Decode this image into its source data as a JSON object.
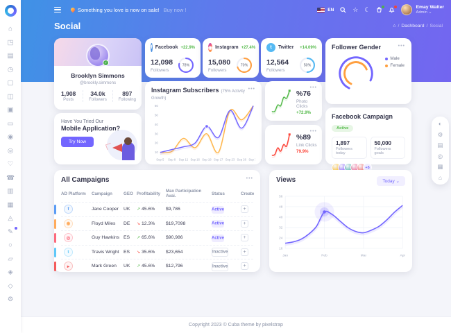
{
  "header": {
    "announcement": "Something you love is now on sale!",
    "announcement_link": "Buy now !",
    "lang": "EN",
    "user_name": "Emay Walter",
    "user_role": "Admin"
  },
  "page": {
    "title": "Social",
    "breadcrumb_home": "⌂",
    "breadcrumb": [
      "Dashboard",
      "Social"
    ]
  },
  "sidebar": {
    "items": [
      {
        "id": "dashboard",
        "glyph": "⌂"
      },
      {
        "id": "widgets",
        "glyph": "◳"
      },
      {
        "id": "page-layout",
        "glyph": "▤"
      },
      {
        "id": "project",
        "glyph": "◷"
      },
      {
        "id": "file-manager",
        "glyph": "▢"
      },
      {
        "id": "kanban",
        "glyph": "◫"
      },
      {
        "id": "ecommerce",
        "glyph": "▣"
      },
      {
        "id": "letter-box",
        "glyph": "▭"
      },
      {
        "id": "chat",
        "glyph": "◉"
      },
      {
        "id": "users",
        "glyph": "◎"
      },
      {
        "id": "bookmarks",
        "glyph": "♡"
      },
      {
        "id": "contacts",
        "glyph": "☎"
      },
      {
        "id": "tasks",
        "glyph": "▥"
      },
      {
        "id": "calendar",
        "glyph": "▦"
      },
      {
        "id": "social-app",
        "glyph": "◬"
      },
      {
        "id": "to-do",
        "glyph": "✎",
        "badge": true
      },
      {
        "id": "search",
        "glyph": "○"
      },
      {
        "id": "blog",
        "glyph": "▱"
      },
      {
        "id": "faq",
        "glyph": "◈"
      },
      {
        "id": "knowledgebase",
        "glyph": "◇"
      },
      {
        "id": "settings",
        "glyph": "⚙"
      }
    ]
  },
  "profile": {
    "name": "Brooklyn Simmons",
    "handle": "@brookly.simmons",
    "stats": [
      {
        "value": "1,908",
        "label": "Posts"
      },
      {
        "value": "34.0k",
        "label": "Followers"
      },
      {
        "value": "897",
        "label": "Following"
      }
    ]
  },
  "mobile_app": {
    "line1": "Have You Tried Our",
    "line2": "Mobile Application?",
    "button": "Try Now"
  },
  "social_cards": [
    {
      "name": "Facebook",
      "change": "+22.9%",
      "value": "12,098",
      "label": "Followers",
      "percent": 78,
      "ring_label": "78%",
      "color": "#7366ff",
      "icon_bg": "#4a90e2",
      "glyph": "f"
    },
    {
      "name": "Instagram",
      "change": "+27.4%",
      "value": "15,080",
      "label": "Followers",
      "percent": 70,
      "ring_label": "70%",
      "color": "#ff9f40",
      "icon_bg": "linear-gradient(135deg,#b83bd8,#ff6a5c,#ffb74d)",
      "glyph": "◉"
    },
    {
      "name": "Twitter",
      "change": "+14.09%",
      "value": "12,564",
      "label": "Followers",
      "percent": 50,
      "ring_label": "50%",
      "color": "#55b9f3",
      "icon_bg": "#55b9f3",
      "glyph": "t"
    }
  ],
  "instagram_card": {
    "title": "Instagram Subscribers",
    "subtitle": "(75% Activity Growth)"
  },
  "photo_clicks": {
    "value": "%76",
    "label": "Photo Clicks",
    "change": "+72.9%",
    "color": "#54ba4a"
  },
  "link_clicks": {
    "value": "%89",
    "label": "Link Clicks",
    "change": "79.9%",
    "color": "#fc4438"
  },
  "follower_gender": {
    "title": "Follower Gender",
    "legend": [
      {
        "label": "Male",
        "color": "#7366ff"
      },
      {
        "label": "Female",
        "color": "#ff9f40"
      }
    ]
  },
  "facebook_campaign": {
    "title": "Facebook Campaign",
    "badge": "Active",
    "today_value": "1,897",
    "today_label": "Followers today",
    "goal_value": "50,000",
    "goal_label": "Followers goals",
    "more": "+5",
    "avatar_colors": [
      "#ffb300",
      "#7c4dff",
      "#26a69a",
      "#ec407a",
      "#ef5350"
    ]
  },
  "campaigns": {
    "title": "All Campaigns",
    "columns": [
      "AD Platform",
      "Campaign",
      "GEO",
      "Profitability",
      "Max Participation Avai.",
      "Status",
      "Create"
    ],
    "rows": [
      {
        "platform": "facebook",
        "glyph": "f",
        "color": "#5a9cf5",
        "campaign": "Jane Cooper",
        "geo": "UK",
        "trend": "up",
        "profit": "45.6%",
        "max": "$9,786",
        "status": "Active"
      },
      {
        "platform": "instagram",
        "glyph": "◉",
        "color": "#ffab5c",
        "campaign": "Floyd Miles",
        "geo": "DE",
        "trend": "down",
        "profit": "12.3%",
        "max": "$19,7098",
        "status": "Active"
      },
      {
        "platform": "pinterest",
        "glyph": "◎",
        "color": "#fc6a7c",
        "campaign": "Guy Hawkins",
        "geo": "ES",
        "trend": "up",
        "profit": "65.6%",
        "max": "$90,986",
        "status": "Active"
      },
      {
        "platform": "twitter",
        "glyph": "t",
        "color": "#5fc8f8",
        "campaign": "Travis Wright",
        "geo": "ES",
        "trend": "down",
        "profit": "35.6%",
        "max": "$23,654",
        "status": "Inactive"
      },
      {
        "platform": "youtube",
        "glyph": "▸",
        "color": "#f45b5b",
        "campaign": "Mark Green",
        "geo": "UK",
        "trend": "up",
        "profit": "45.6%",
        "max": "$12,796",
        "status": "Inactive"
      }
    ]
  },
  "views_card": {
    "title": "Views",
    "filter": "Today"
  },
  "right_toolbar": {
    "icons": [
      {
        "id": "palette",
        "glyph": "◐"
      },
      {
        "id": "settings",
        "glyph": "⚙"
      },
      {
        "id": "archive",
        "glyph": "▤"
      },
      {
        "id": "target",
        "glyph": "◎"
      },
      {
        "id": "save",
        "glyph": "▦"
      },
      {
        "id": "store",
        "glyph": "⌂"
      }
    ]
  },
  "footer": "Copyright 2023 © Cuba theme by pixelstrap",
  "chart_data": [
    {
      "id": "instagram_subscribers",
      "type": "line",
      "title": "Instagram Subscribers (75% Activity Growth)",
      "x": [
        "Sep 5",
        "Sep 8",
        "Sep 12",
        "Sep 16",
        "Sep 18",
        "Sep 17",
        "Sep 23",
        "Sep 26",
        "Sep 30"
      ],
      "series": [
        {
          "name": "subscribers-purple",
          "color": "#7366ff",
          "values": [
            10,
            13,
            16,
            20,
            38,
            26,
            55,
            36,
            60
          ]
        },
        {
          "name": "subscribers-orange",
          "color": "#ffb74d",
          "values": [
            10,
            11,
            25,
            15,
            30,
            10,
            55,
            45,
            60
          ]
        }
      ],
      "ylim": [
        10,
        60
      ],
      "yticks": [
        10,
        20,
        30,
        40,
        50,
        60
      ],
      "marker": {
        "series": 0,
        "index": 4
      },
      "legend_position": "none",
      "grid": false
    },
    {
      "id": "photo_clicks_spark",
      "type": "line",
      "color": "#54ba4a",
      "values": [
        8,
        9,
        24,
        22,
        42,
        40,
        58
      ]
    },
    {
      "id": "link_clicks_spark",
      "type": "line",
      "color": "#fc4438",
      "values": [
        8,
        10,
        26,
        18,
        34,
        30,
        58
      ]
    },
    {
      "id": "views",
      "type": "line",
      "title": "Views",
      "color": "#7366ff",
      "x_labels": [
        "Jan",
        "Feb",
        "Mar",
        "Apr"
      ],
      "values": [
        20,
        21,
        23,
        27,
        33,
        44,
        42,
        37,
        32,
        29,
        28,
        30,
        33,
        38,
        44,
        49
      ],
      "ylim": [
        16,
        56
      ],
      "yticks": [
        16,
        24,
        32,
        40,
        48,
        56
      ],
      "marker_index": 5,
      "grid": true
    },
    {
      "id": "follower_gender",
      "type": "radial",
      "series": [
        {
          "name": "Male",
          "color": "#7366ff",
          "fraction": 0.75
        },
        {
          "name": "Female",
          "color": "#ff9f40",
          "fraction": 0.62
        }
      ]
    }
  ]
}
